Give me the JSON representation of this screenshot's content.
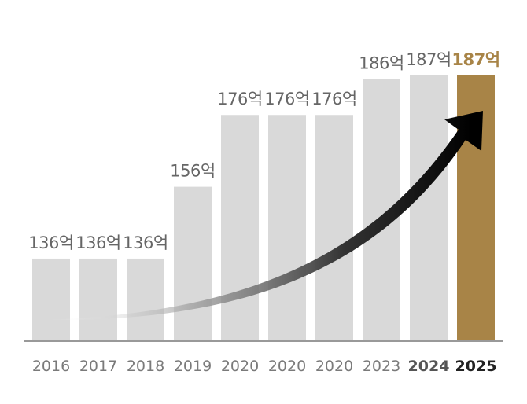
{
  "chart_data": {
    "type": "bar",
    "title": "",
    "xlabel": "",
    "ylabel": "",
    "categories": [
      "2016",
      "2017",
      "2018",
      "2019",
      "2020",
      "2020",
      "2020",
      "2023",
      "2024",
      "2025"
    ],
    "values": [
      136,
      136,
      136,
      156,
      176,
      176,
      176,
      186,
      187,
      187
    ],
    "data_labels": [
      "136억",
      "136억",
      "136억",
      "156억",
      "176억",
      "176억",
      "176억",
      "186억",
      "187억",
      "187억"
    ],
    "ylim": [
      113,
      187
    ],
    "grid": false,
    "legend": "none",
    "highlight_index": 9,
    "annotation": "rising-trend-arrow",
    "colors": {
      "bar": "#d9d9d9",
      "highlight_bar": "#a88447",
      "axis": "#999999",
      "arrow": "#000000"
    }
  }
}
